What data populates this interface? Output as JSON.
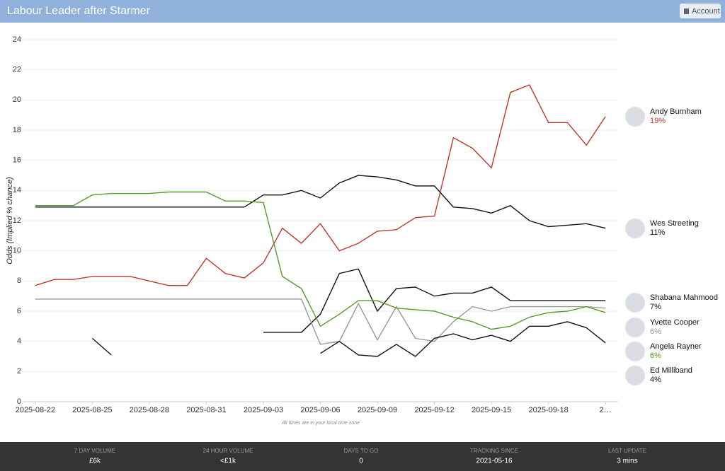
{
  "header": {
    "title": "Labour Leader after Starmer",
    "account": "Account"
  },
  "chart_data": {
    "type": "line",
    "y_label": "Odds (Implied % chance)",
    "note": "All times are in your local time zone",
    "x": [
      "2025-08-22",
      "2025-08-23",
      "2025-08-24",
      "2025-08-25",
      "2025-08-26",
      "2025-08-27",
      "2025-08-28",
      "2025-08-29",
      "2025-08-30",
      "2025-08-31",
      "2025-09-01",
      "2025-09-02",
      "2025-09-03",
      "2025-09-04",
      "2025-09-05",
      "2025-09-06",
      "2025-09-07",
      "2025-09-08",
      "2025-09-09",
      "2025-09-10",
      "2025-09-11",
      "2025-09-12",
      "2025-09-13",
      "2025-09-14",
      "2025-09-15",
      "2025-09-16",
      "2025-09-17",
      "2025-09-18",
      "2025-09-19",
      "2025-09-20",
      "2025-09-21"
    ],
    "xlim": [
      "2025-08-21",
      "2025-09-22"
    ],
    "xticks": [
      "2025-08-22",
      "2025-08-25",
      "2025-08-28",
      "2025-08-31",
      "2025-09-03",
      "2025-09-06",
      "2025-09-09",
      "2025-09-12",
      "2025-09-15",
      "2025-09-18",
      {
        "value": "2025-09-21",
        "label": "2…"
      }
    ],
    "ylim": [
      0,
      24
    ],
    "yticks": [
      0,
      2,
      4,
      6,
      8,
      10,
      12,
      14,
      16,
      18,
      20,
      22,
      24
    ],
    "grid": true,
    "series": [
      {
        "name": "Andy Burnham",
        "color": "#c0392b",
        "latest": "19%",
        "values": [
          7.7,
          8.1,
          8.1,
          8.3,
          8.3,
          8.3,
          8.0,
          7.7,
          7.7,
          9.5,
          8.5,
          8.2,
          9.2,
          11.5,
          10.5,
          11.8,
          10.0,
          10.5,
          11.3,
          11.4,
          12.2,
          12.3,
          17.5,
          16.8,
          15.5,
          20.5,
          21.0,
          18.5,
          18.5,
          17.0,
          18.9
        ]
      },
      {
        "name": "Wes Streeting",
        "color": "#111111",
        "latest": "11%",
        "values": [
          12.9,
          12.9,
          12.9,
          12.9,
          12.9,
          12.9,
          12.9,
          12.9,
          12.9,
          12.9,
          12.9,
          12.9,
          13.7,
          13.7,
          14.0,
          13.5,
          14.5,
          15.0,
          14.9,
          14.7,
          14.3,
          14.3,
          12.9,
          12.8,
          12.5,
          13.0,
          12.0,
          11.6,
          11.7,
          11.8,
          11.5
        ]
      },
      {
        "name": "Shabana Mahmood",
        "color": "#111111",
        "latest": "7%",
        "values": [
          null,
          null,
          null,
          null,
          null,
          null,
          null,
          null,
          null,
          null,
          null,
          null,
          4.6,
          4.6,
          4.6,
          5.8,
          8.5,
          8.8,
          6.0,
          7.5,
          7.6,
          7.0,
          7.2,
          7.2,
          7.6,
          6.7,
          6.7,
          6.7,
          6.7,
          6.7,
          6.7
        ]
      },
      {
        "name": "Yvette Cooper",
        "color": "#999999",
        "latest": "6%",
        "values": [
          6.8,
          6.8,
          6.8,
          6.8,
          6.8,
          6.8,
          6.8,
          6.8,
          6.8,
          6.8,
          6.8,
          6.8,
          6.8,
          6.8,
          6.8,
          3.8,
          4.0,
          6.5,
          4.1,
          6.3,
          4.2,
          4.0,
          5.3,
          6.3,
          6.0,
          6.3,
          6.3,
          6.3,
          6.3,
          6.3,
          6.2
        ]
      },
      {
        "name": "Angela Rayner",
        "color": "#5a9a2a",
        "latest": "6%",
        "values": [
          13.0,
          13.0,
          13.0,
          13.7,
          13.8,
          13.8,
          13.8,
          13.9,
          13.9,
          13.9,
          13.3,
          13.3,
          13.2,
          8.3,
          7.5,
          5.0,
          5.8,
          6.7,
          6.7,
          6.2,
          6.1,
          6.0,
          5.6,
          5.3,
          4.8,
          5.0,
          5.6,
          5.9,
          6.0,
          6.3,
          5.9
        ]
      },
      {
        "name": "Ed Milliband",
        "color": "#111111",
        "latest": "4%",
        "values": [
          null,
          null,
          null,
          4.2,
          3.1,
          null,
          null,
          null,
          null,
          null,
          null,
          null,
          null,
          null,
          null,
          3.2,
          4.0,
          3.1,
          3.0,
          3.8,
          3.0,
          4.2,
          4.5,
          4.1,
          4.4,
          4.0,
          5.0,
          5.0,
          5.3,
          4.9,
          3.9
        ]
      }
    ]
  },
  "stats": [
    {
      "label": "7 DAY VOLUME",
      "value": "£6k"
    },
    {
      "label": "24 HOUR VOLUME",
      "value": "<£1k"
    },
    {
      "label": "DAYS TO GO",
      "value": "0"
    },
    {
      "label": "TRACKING SINCE",
      "value": "2021-05-16"
    },
    {
      "label": "LAST UPDATE",
      "value": "3 mins"
    }
  ]
}
